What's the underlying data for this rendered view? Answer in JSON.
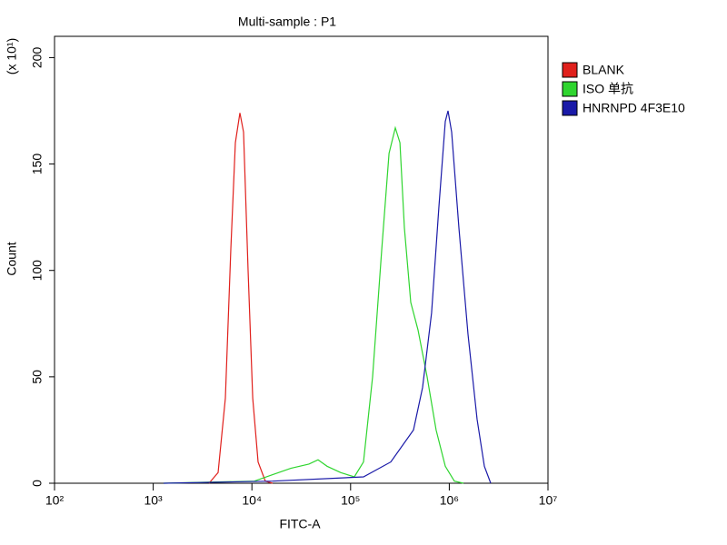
{
  "chart_data": {
    "type": "line",
    "title": "Multi-sample : P1",
    "x_label": "FITC-A",
    "y_label": "Count",
    "y_unit": "(x 10¹)",
    "xscale": "log",
    "xlim": [
      100,
      10000000
    ],
    "xticks": [
      {
        "value": 100,
        "label": "10²"
      },
      {
        "value": 1000,
        "label": "10³"
      },
      {
        "value": 10000,
        "label": "10⁴"
      },
      {
        "value": 100000,
        "label": "10⁵"
      },
      {
        "value": 1000000,
        "label": "10⁶"
      },
      {
        "value": 10000000,
        "label": "10⁷"
      }
    ],
    "ylim": [
      0,
      210
    ],
    "yticks": [
      0,
      50,
      100,
      150,
      200
    ],
    "legend": "right",
    "series": [
      {
        "name": "BLANK",
        "color": "#e0201c",
        "x": [
          3675,
          4540,
          5380,
          6110,
          6800,
          7560,
          8230,
          9140,
          10200,
          11550,
          13680,
          16200
        ],
        "values": [
          0,
          5,
          40,
          110,
          160,
          174,
          165,
          100,
          40,
          10,
          1,
          0
        ]
      },
      {
        "name": "ISO 单抗",
        "color": "#2fd52f",
        "x": [
          1274,
          10600,
          16200,
          24800,
          37800,
          46800,
          57800,
          79600,
          109000,
          135000,
          167000,
          207000,
          245000,
          284000,
          316000,
          351000,
          407000,
          482000,
          596000,
          736000,
          910000,
          1127000,
          1393000
        ],
        "values": [
          0,
          1,
          4,
          7,
          9,
          11,
          8,
          5,
          3,
          10,
          50,
          110,
          155,
          167,
          160,
          120,
          85,
          72,
          50,
          25,
          8,
          1,
          0
        ]
      },
      {
        "name": "HNRNPD 4F3E10",
        "color": "#1a1aa8",
        "x": [
          1274,
          16200,
          135000,
          255000,
          434000,
          536000,
          662000,
          785000,
          910000,
          971000,
          1057000,
          1253000,
          1549000,
          1914000,
          2266000,
          2630000
        ],
        "values": [
          0,
          1,
          3,
          10,
          25,
          45,
          80,
          130,
          170,
          175,
          165,
          120,
          70,
          30,
          8,
          0
        ]
      }
    ]
  }
}
